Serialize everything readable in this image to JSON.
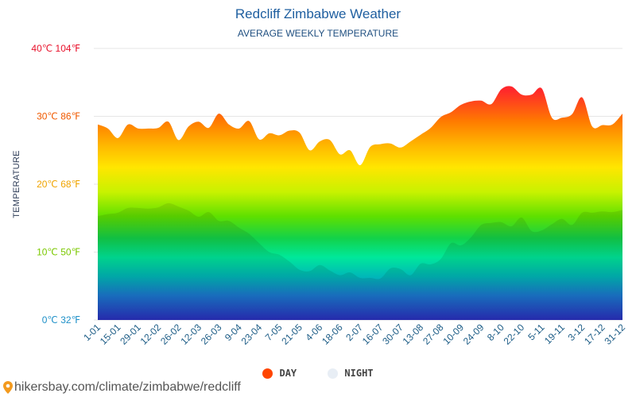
{
  "chart_data": {
    "type": "area",
    "title": "Redcliff Zimbabwe Weather",
    "subtitle": "AVERAGE WEEKLY TEMPERATURE",
    "ylabel": "TEMPERATURE",
    "y_ticks": [
      "0℃ 32℉",
      "10℃ 50℉",
      "20℃ 68℉",
      "30℃ 86℉",
      "40℃ 104℉"
    ],
    "ylim": [
      0,
      40
    ],
    "grid": true,
    "x_ticks": [
      "1-01",
      "15-01",
      "29-01",
      "12-02",
      "26-02",
      "12-03",
      "26-03",
      "9-04",
      "23-04",
      "7-05",
      "21-05",
      "4-06",
      "18-06",
      "2-07",
      "16-07",
      "30-07",
      "13-08",
      "27-08",
      "10-09",
      "24-09",
      "8-10",
      "22-10",
      "5-11",
      "19-11",
      "3-12",
      "17-12",
      "31-12"
    ],
    "series": [
      {
        "name": "DAY",
        "color": "#ff4500",
        "values": [
          28.8,
          28.2,
          26.8,
          28.8,
          28.2,
          28.2,
          28.3,
          29.2,
          26.5,
          28.5,
          29.2,
          28.3,
          30.4,
          28.8,
          28.2,
          29.3,
          26.6,
          27.5,
          27.2,
          27.9,
          27.6,
          25.0,
          26.3,
          26.5,
          24.4,
          25.0,
          22.8,
          25.5,
          25.9,
          26.0,
          25.4,
          26.3,
          27.3,
          28.3,
          29.9,
          30.6,
          31.7,
          32.2,
          32.3,
          31.8,
          34.0,
          34.4,
          33.2,
          33.2,
          34.1,
          29.8,
          29.8,
          30.3,
          32.8,
          28.5,
          28.7,
          28.8,
          30.4
        ]
      },
      {
        "name": "NIGHT",
        "color": "#e8eef5",
        "values": [
          15.3,
          15.6,
          15.8,
          16.5,
          16.5,
          16.4,
          16.6,
          17.2,
          16.7,
          16.1,
          15.2,
          15.9,
          14.6,
          14.6,
          13.6,
          12.7,
          11.3,
          10.0,
          9.6,
          8.6,
          7.4,
          7.2,
          8.1,
          7.3,
          6.6,
          7.0,
          6.2,
          6.2,
          6.1,
          7.6,
          7.5,
          6.6,
          8.3,
          8.2,
          9.0,
          11.3,
          11.0,
          12.2,
          14.0,
          14.3,
          14.4,
          13.8,
          15.1,
          13.1,
          13.2,
          14.1,
          14.9,
          14.0,
          15.8,
          15.8,
          16.0,
          15.9,
          16.2
        ]
      }
    ]
  },
  "legend": {
    "day": "DAY",
    "night": "NIGHT"
  },
  "footer": {
    "url": "hikersbay.com/climate/zimbabwe/redcliff"
  }
}
